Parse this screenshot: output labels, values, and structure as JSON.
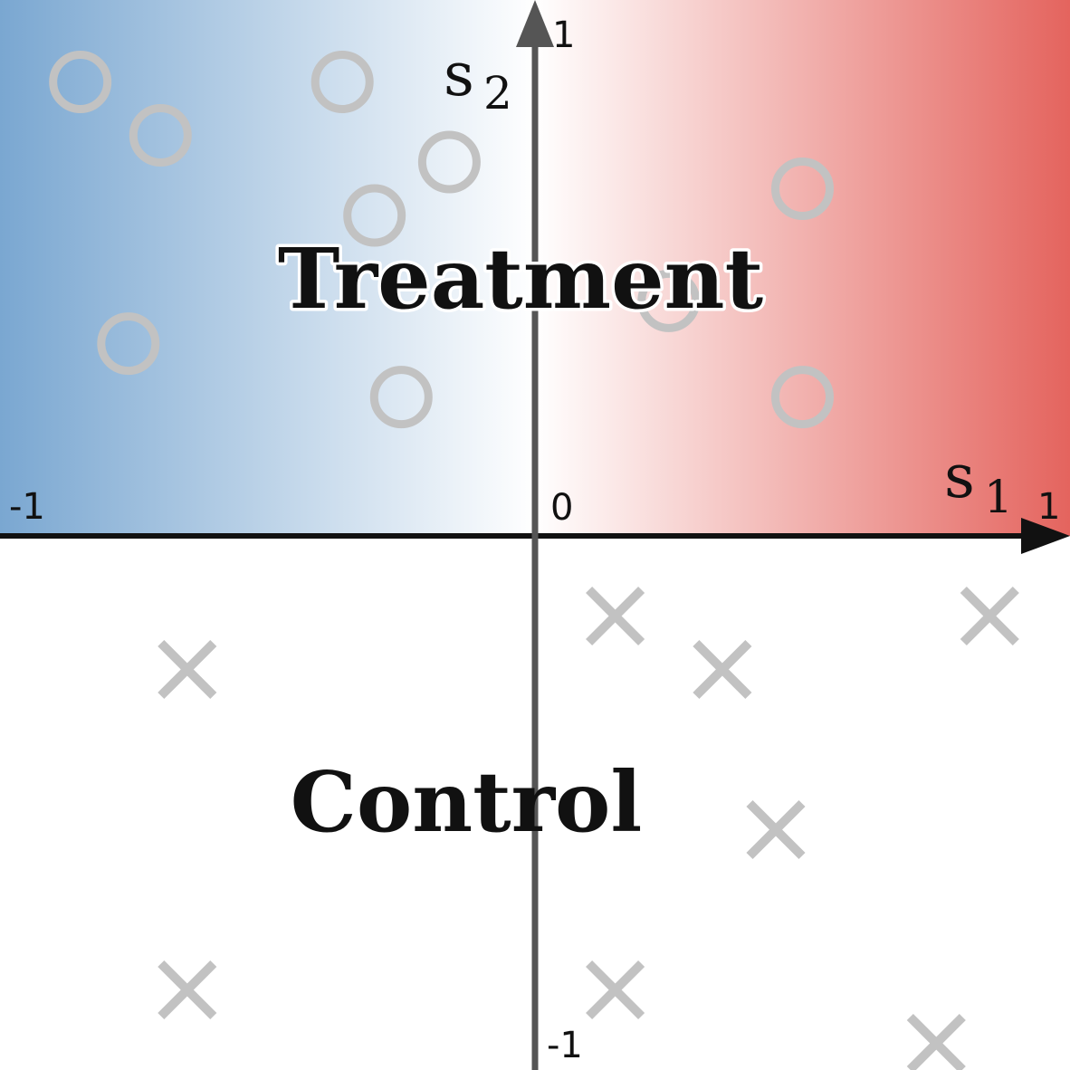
{
  "labels": {
    "treatment": "Treatment",
    "control": "Control"
  },
  "axes": {
    "x": {
      "name": "s",
      "subscript": "1",
      "range": [
        -1,
        1
      ],
      "ticks": [
        "-1",
        "0",
        "1"
      ]
    },
    "y": {
      "name": "s",
      "subscript": "2",
      "range": [
        -1,
        1
      ],
      "ticks": [
        "1",
        "-1"
      ]
    }
  },
  "colors": {
    "negative": "#7aa7d1",
    "zero": "#ffffff",
    "positive": "#e4645e",
    "marker": "#c2c2c2",
    "axis_x": "#111111",
    "axis_y": "#555555"
  },
  "chart_data": {
    "type": "scatter",
    "xlim": [
      -1,
      1
    ],
    "ylim": [
      -1,
      1
    ],
    "grid": false,
    "series": [
      {
        "marker": "circle",
        "points": [
          [
            -0.85,
            0.85
          ],
          [
            -0.7,
            0.75
          ],
          [
            -0.36,
            0.85
          ],
          [
            -0.3,
            0.6
          ],
          [
            -0.16,
            0.7
          ],
          [
            -0.76,
            0.36
          ],
          [
            -0.25,
            0.26
          ],
          [
            0.5,
            0.65
          ],
          [
            0.5,
            0.26
          ],
          [
            0.25,
            0.44
          ]
        ]
      },
      {
        "marker": "cross",
        "points": [
          [
            0.15,
            -0.15
          ],
          [
            0.85,
            -0.15
          ],
          [
            -0.65,
            -0.25
          ],
          [
            0.35,
            -0.25
          ],
          [
            0.45,
            -0.55
          ],
          [
            -0.65,
            -0.85
          ],
          [
            0.15,
            -0.85
          ],
          [
            0.75,
            -0.95
          ]
        ]
      }
    ]
  }
}
